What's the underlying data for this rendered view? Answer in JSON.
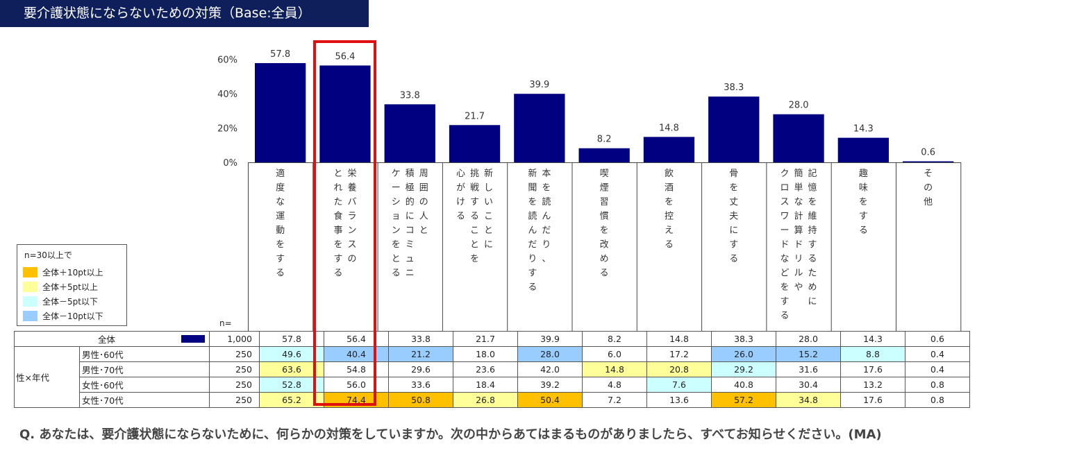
{
  "title": "要介護状態にならないための対策（Base:全員）",
  "chart_data": {
    "type": "bar",
    "categories": [
      "適度な運動をする",
      "栄養バランスのとれた食事をする",
      "周囲の人と積極的にコミュニケーションをとる",
      "新しいことに挑戦することを心がける",
      "本を読んだり、新聞を読んだりする",
      "喫煙習慣を改める",
      "飲酒を控える",
      "骨を丈夫にする",
      "記憶を維持するために簡単な計算ドリルやクロスワードなどをする",
      "趣味をする",
      "その他"
    ],
    "category_lines": [
      [
        "適度な運動をする"
      ],
      [
        "栄養バランスの",
        "とれた食事をする"
      ],
      [
        "周囲の人と",
        "積極的にコミュニ",
        "ケーションをとる"
      ],
      [
        "新しいことに",
        "挑戦することを",
        "心がける"
      ],
      [
        "本を読んだり、",
        "新聞を読んだりする"
      ],
      [
        "喫煙習慣を改める"
      ],
      [
        "飲酒を控える"
      ],
      [
        "骨を丈夫にする"
      ],
      [
        "記憶を維持するために",
        "簡単な計算ドリルや",
        "クロスワードなどをする"
      ],
      [
        "趣味をする"
      ],
      [
        "その他"
      ]
    ],
    "values": [
      57.8,
      56.4,
      33.8,
      21.7,
      39.9,
      8.2,
      14.8,
      38.3,
      28.0,
      14.3,
      0.6
    ],
    "data_labels": [
      "57.8",
      "56.4",
      "33.8",
      "21.7",
      "39.9",
      "8.2",
      "14.8",
      "38.3",
      "28.0",
      "14.3",
      "0.6"
    ],
    "yticks": [
      "0%",
      "20%",
      "40%",
      "60%"
    ],
    "ylim": [
      0,
      60
    ],
    "bar_color": "#000080",
    "highlighted_category": "栄養バランスのとれた食事をする"
  },
  "legend": {
    "header": "n=30以上で",
    "items": [
      {
        "label": "全体＋10pt以上",
        "color": "#ffc000"
      },
      {
        "label": "全体＋5pt以上",
        "color": "#ffff99"
      },
      {
        "label": "全体－5pt以下",
        "color": "#ccffff"
      },
      {
        "label": "全体－10pt以下",
        "color": "#99ccff"
      }
    ]
  },
  "table": {
    "n_header": "n=",
    "total_row": {
      "label": "全体",
      "n": "1,000",
      "values": [
        "57.8",
        "56.4",
        "33.8",
        "21.7",
        "39.9",
        "8.2",
        "14.8",
        "38.3",
        "28.0",
        "14.3",
        "0.6"
      ]
    },
    "group_label": "性×年代",
    "rows": [
      {
        "label": "男性･60代",
        "n": "250",
        "values": [
          "49.6",
          "40.4",
          "21.2",
          "18.0",
          "28.0",
          "6.0",
          "17.2",
          "26.0",
          "15.2",
          "8.8",
          "0.4"
        ],
        "highlights": [
          "l",
          "ll",
          "ll",
          "",
          "ll",
          "",
          "",
          "ll",
          "ll",
          "l",
          ""
        ]
      },
      {
        "label": "男性･70代",
        "n": "250",
        "values": [
          "63.6",
          "54.8",
          "29.6",
          "23.6",
          "42.0",
          "14.8",
          "20.8",
          "29.2",
          "31.6",
          "17.6",
          "0.4"
        ],
        "highlights": [
          "s",
          "",
          "",
          "",
          "",
          "s",
          "s",
          "l",
          "",
          "",
          ""
        ]
      },
      {
        "label": "女性･60代",
        "n": "250",
        "values": [
          "52.8",
          "56.0",
          "33.6",
          "18.4",
          "39.2",
          "4.8",
          "7.6",
          "40.8",
          "30.4",
          "13.2",
          "0.8"
        ],
        "highlights": [
          "l",
          "",
          "",
          "",
          "",
          "",
          "l",
          "",
          "",
          "",
          ""
        ]
      },
      {
        "label": "女性･70代",
        "n": "250",
        "values": [
          "65.2",
          "74.4",
          "50.8",
          "26.8",
          "50.4",
          "7.2",
          "13.6",
          "57.2",
          "34.8",
          "17.6",
          "0.8"
        ],
        "highlights": [
          "s",
          "ss",
          "ss",
          "s",
          "ss",
          "",
          "",
          "ss",
          "s",
          "",
          ""
        ]
      }
    ]
  },
  "question": "Q.  あなたは、要介護状態にならないために、何らかの対策をしていますか。次の中からあてはまるものがありましたら、すべてお知らせください。(MA)"
}
